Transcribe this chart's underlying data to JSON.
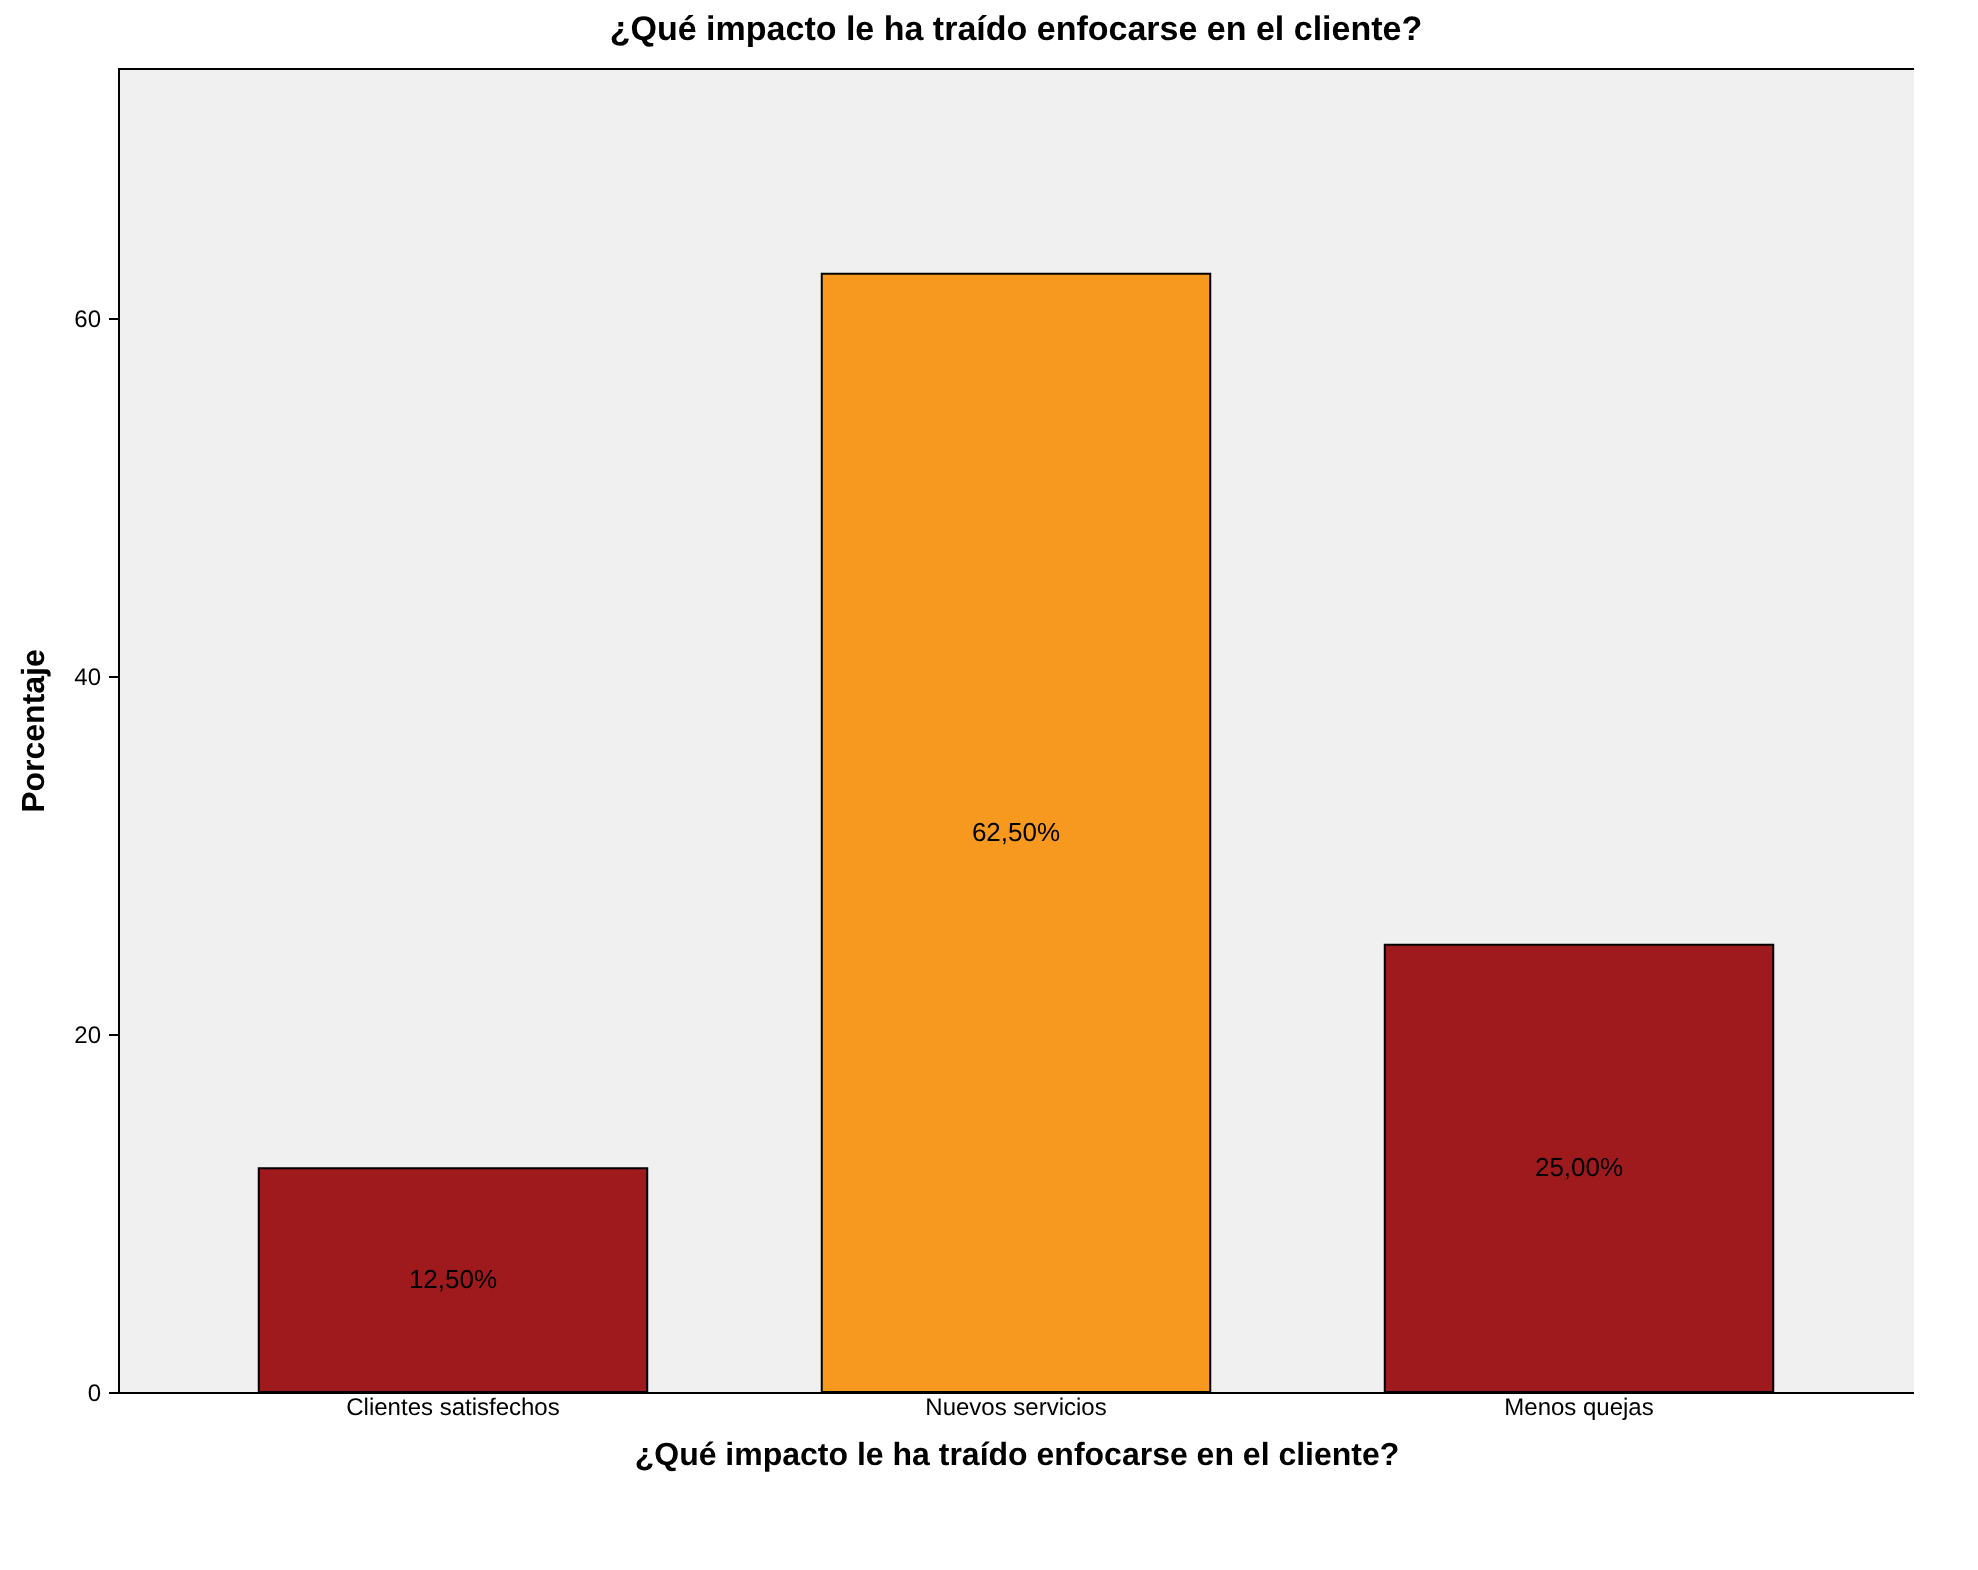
{
  "chart_data": {
    "type": "bar",
    "title": "¿Qué impacto le ha traído enfocarse en el cliente?",
    "xlabel": "¿Qué impacto le ha traído enfocarse en el cliente?",
    "ylabel": "Porcentaje",
    "categories": [
      "Clientes satisfechos",
      "Nuevos servicios",
      "Menos quejas"
    ],
    "values": [
      12.5,
      62.5,
      25
    ],
    "colors": [
      "#9e1a1c",
      "#f7981f",
      "#9e1a1c"
    ],
    "value_labels": [
      "12,50%",
      "62,50%",
      "25,00%"
    ],
    "ylim": [
      0,
      74
    ],
    "yticks": [
      0,
      20,
      40,
      60
    ]
  }
}
